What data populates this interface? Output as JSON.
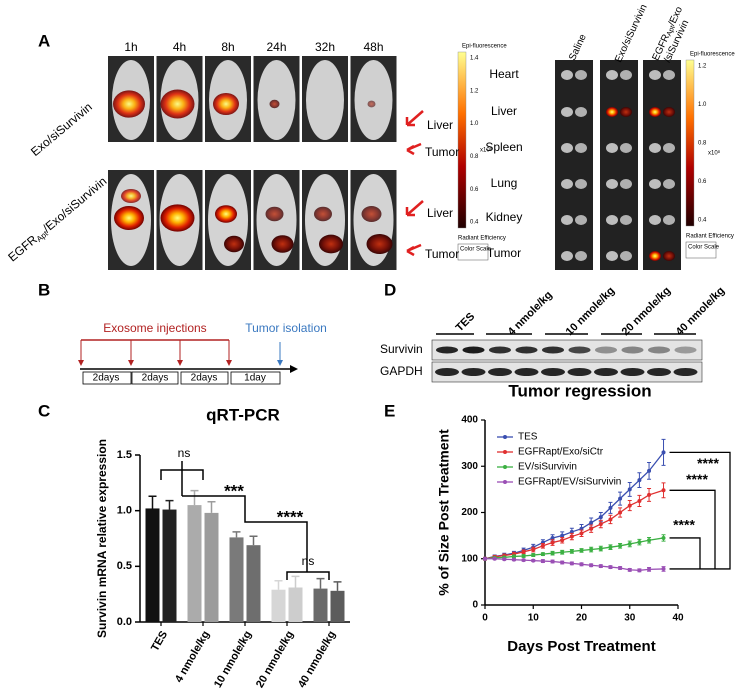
{
  "panel_a": {
    "label": "A",
    "times": [
      "1h",
      "4h",
      "8h",
      "24h",
      "32h",
      "48h"
    ],
    "row1": "Exo/siSurvivin",
    "row2": {
      "main": "EGFR",
      "sub": "Apt",
      "rest": "/Exo/siSurvivin"
    },
    "annotations": [
      "Liver",
      "Tumor",
      "Liver",
      "Tumor"
    ],
    "colorbar": {
      "title": "Epi-fluorescence",
      "ticks": [
        "1.4",
        "1.2",
        "1.0",
        "0.8",
        "0.6",
        "0.4"
      ],
      "unit": "x10⁸",
      "caption": "Radiant Efficiency",
      "scale": "Color Scale"
    },
    "organ_columns": [
      "Saline",
      "Exo/siSurvivin",
      {
        "main": "EGFR",
        "sub": "Apt",
        "rest": "/Exo",
        "line2": "/siSurvivin"
      }
    ],
    "organs": [
      "Heart",
      "Liver",
      "Spleen",
      "Lung",
      "Kidney",
      "Tumor"
    ],
    "colorbar2": {
      "title": "Epi-fluorescence",
      "ticks": [
        "1.2",
        "1.0",
        "0.8",
        "0.6",
        "0.4"
      ],
      "unit": "x10⁸",
      "caption": "Radiant Efficiency",
      "scale": "Color Scale"
    }
  },
  "panel_b": {
    "label": "B",
    "injections": "Exosome injections",
    "isolation": "Tumor isolation",
    "intervals": [
      "2days",
      "2days",
      "2days",
      "1day"
    ]
  },
  "panel_d": {
    "label": "D",
    "lanes": [
      "TES",
      "4 nmole/kg",
      "10 nmole/kg",
      "20 nmole/kg",
      "40 nmole/kg"
    ],
    "rows": [
      "Survivin",
      "GAPDH"
    ]
  },
  "chart_data": [
    {
      "type": "bar",
      "panel": "C",
      "title": "qRT-PCR",
      "y_label": "Survivin mRNA relative expression",
      "categories": [
        "TES",
        "4 nmole/kg",
        "10 nmole/kg",
        "20 nmole/kg",
        "40 nmole/kg"
      ],
      "series": [
        {
          "values": [
            1.02,
            1.05,
            0.76,
            0.29,
            0.3
          ],
          "errors": [
            0.11,
            0.13,
            0.05,
            0.08,
            0.09
          ],
          "colors": [
            "#111111",
            "#ababab",
            "#7a7a7a",
            "#d6d6d6",
            "#6a6a6a"
          ]
        },
        {
          "values": [
            1.01,
            0.98,
            0.69,
            0.31,
            0.28
          ],
          "errors": [
            0.08,
            0.1,
            0.08,
            0.1,
            0.08
          ],
          "colors": [
            "#222222",
            "#9c9c9c",
            "#6e6e6e",
            "#cdcdcd",
            "#5c5c5c"
          ]
        }
      ],
      "ylim": [
        0,
        1.5
      ],
      "yticks": [
        {
          "value": 0,
          "label": "0.0"
        },
        {
          "value": 0.5,
          "label": "0.5"
        },
        {
          "value": 1,
          "label": "1.0"
        },
        {
          "value": 1.5,
          "label": "1.5"
        }
      ],
      "annotations": [
        "ns",
        "***",
        "****",
        "ns"
      ]
    },
    {
      "type": "line",
      "panel": "E",
      "title": "Tumor regression",
      "x_label": "Days Post Treatment",
      "y_label": "% of Size Post Treatment",
      "x": [
        0,
        2,
        4,
        6,
        8,
        10,
        12,
        14,
        16,
        18,
        20,
        22,
        24,
        26,
        28,
        30,
        32,
        34,
        37
      ],
      "series": [
        {
          "name": "TES",
          "color": "#3a4fb0",
          "values": [
            100,
            105,
            108,
            112,
            118,
            125,
            135,
            145,
            150,
            158,
            165,
            178,
            190,
            210,
            230,
            250,
            270,
            290,
            330
          ],
          "errors": [
            3,
            3,
            4,
            4,
            5,
            6,
            6,
            7,
            8,
            8,
            9,
            10,
            10,
            12,
            14,
            15,
            16,
            18,
            28
          ]
        },
        {
          "name": "EGFRapt/Exo/siCtr",
          "color": "#e03030",
          "values": [
            100,
            104,
            107,
            110,
            115,
            120,
            128,
            135,
            140,
            148,
            155,
            165,
            175,
            185,
            200,
            215,
            225,
            238,
            248
          ],
          "errors": [
            3,
            3,
            3,
            4,
            4,
            5,
            5,
            6,
            6,
            7,
            7,
            8,
            8,
            9,
            10,
            11,
            12,
            14,
            16
          ]
        },
        {
          "name": "EV/siSurvivin",
          "color": "#3cb043",
          "values": [
            100,
            102,
            103,
            105,
            106,
            108,
            110,
            112,
            114,
            116,
            118,
            120,
            122,
            125,
            128,
            132,
            136,
            140,
            145
          ],
          "errors": [
            2,
            2,
            2,
            3,
            3,
            3,
            3,
            4,
            4,
            4,
            4,
            5,
            5,
            5,
            5,
            6,
            6,
            6,
            7
          ]
        },
        {
          "name": "EGFRapt/EV/siSurvivin",
          "color": "#9a4fb5",
          "values": [
            100,
            100,
            99,
            98,
            97,
            96,
            95,
            94,
            92,
            90,
            88,
            86,
            84,
            82,
            80,
            76,
            75,
            77,
            78
          ],
          "errors": [
            2,
            2,
            2,
            2,
            2,
            2,
            3,
            3,
            3,
            3,
            3,
            3,
            3,
            3,
            3,
            3,
            3,
            4,
            5
          ]
        }
      ],
      "xlim": [
        0,
        40
      ],
      "xticks": [
        0,
        10,
        20,
        30,
        40
      ],
      "ylim": [
        0,
        400
      ],
      "yticks": [
        0,
        100,
        200,
        300,
        400
      ],
      "annotations": [
        "****",
        "****",
        "****"
      ]
    }
  ]
}
